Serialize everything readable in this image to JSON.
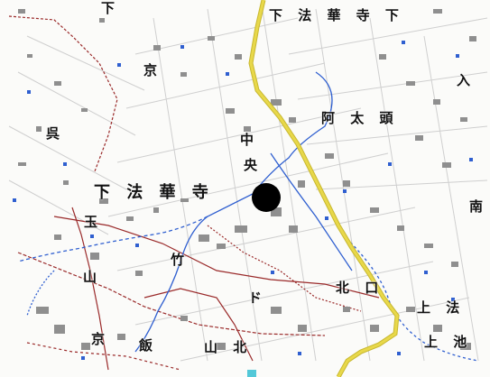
{
  "map": {
    "labels": {
      "top_center": "下 法 華 寺 下",
      "top_left": "下",
      "left_upper": "京",
      "left_middle": "呉",
      "center_left": "下 法 華 寺",
      "center": "中 ",
      "center_small": "央",
      "right_upper": "阿 太 頭",
      "right_edge_top": "入",
      "right_edge_mid": "南",
      "left_lower": "玉",
      "lower_left": "山",
      "lower_center_left": "竹",
      "lower_center": "ド",
      "lower_right": "北 口",
      "lower_right2": "上 法",
      "bottom_left": "京",
      "bottom_center_left": "飯",
      "bottom_center": "山 北",
      "bottom_right": "上 池"
    },
    "colors": {
      "road_major": "#e8d84a",
      "road_major_casing": "#c8b830",
      "waterway": "#2f5fd0",
      "contour": "#9a2a2a",
      "building": "#8f8f8f",
      "street": "#c9c9c9",
      "marker": "#000000"
    },
    "marker_icon": "location-dot-icon"
  }
}
